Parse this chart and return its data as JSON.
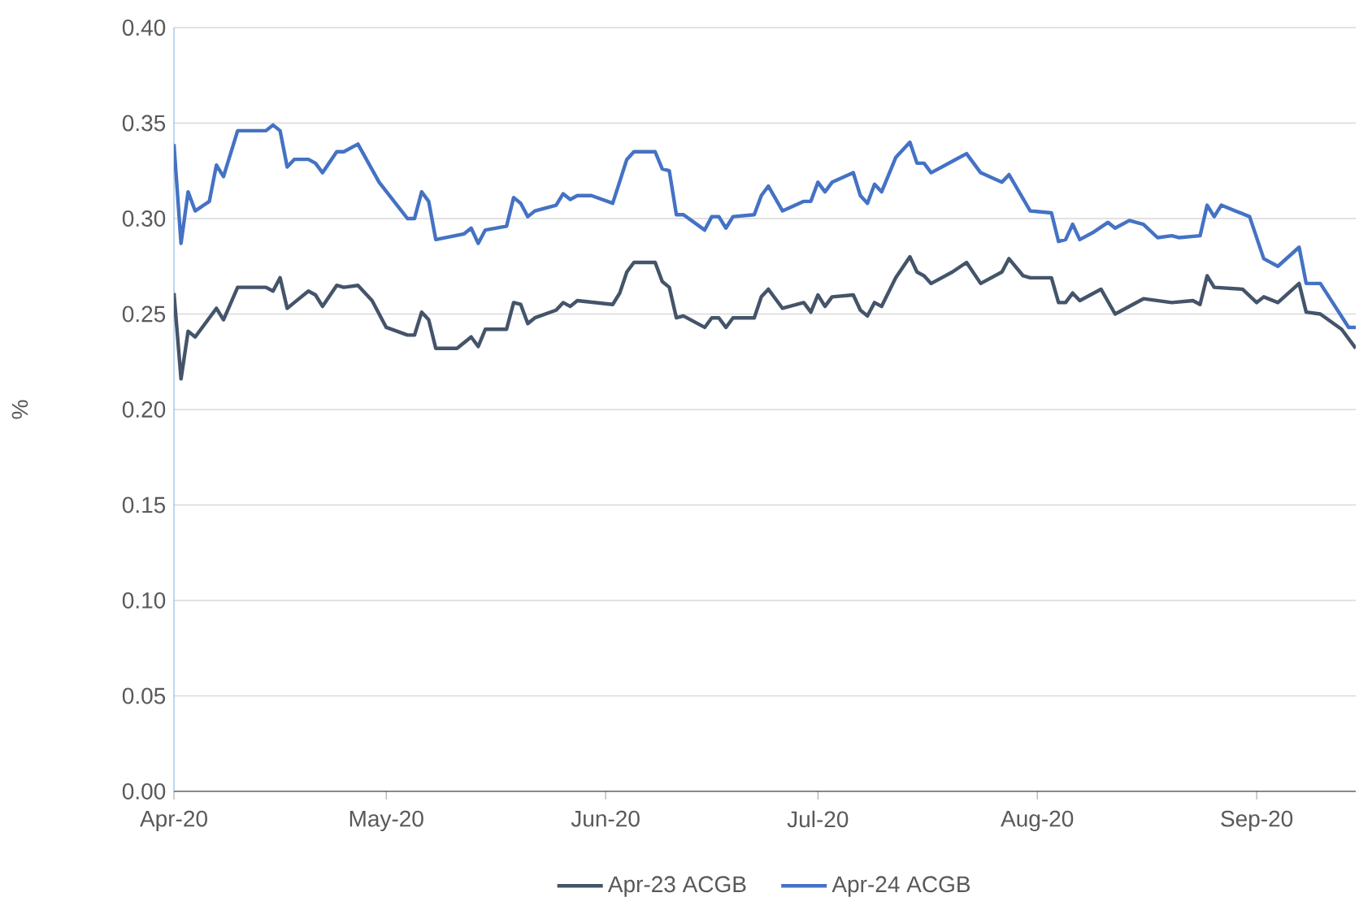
{
  "chart_data": {
    "type": "line",
    "ylabel": "%",
    "xlim": [
      "2020-04-01",
      "2020-09-15"
    ],
    "xticks": [
      {
        "value": "2020-04-01",
        "label": "Apr-20"
      },
      {
        "value": "2020-05-01",
        "label": "May-20"
      },
      {
        "value": "2020-06-01",
        "label": "Jun-20"
      },
      {
        "value": "2020-07-01",
        "label": "Jul-20"
      },
      {
        "value": "2020-08-01",
        "label": "Aug-20"
      },
      {
        "value": "2020-09-01",
        "label": "Sep-20"
      }
    ],
    "ylim": [
      0,
      0.4
    ],
    "yticks": [
      {
        "value": 0,
        "label": "0.00"
      },
      {
        "value": 0.05,
        "label": "0.05"
      },
      {
        "value": 0.1,
        "label": "0.10"
      },
      {
        "value": 0.15,
        "label": "0.15"
      },
      {
        "value": 0.2,
        "label": "0.20"
      },
      {
        "value": 0.25,
        "label": "0.25"
      },
      {
        "value": 0.3,
        "label": "0.30"
      },
      {
        "value": 0.35,
        "label": "0.35"
      },
      {
        "value": 0.4,
        "label": "0.40"
      }
    ],
    "grid": "y",
    "legend": "bottom",
    "line_style": "solid",
    "series": [
      {
        "name": "Apr-23 ACGB",
        "color": "#44546a",
        "x": [
          "2020-04-01",
          "2020-04-02",
          "2020-04-03",
          "2020-04-04",
          "2020-04-06",
          "2020-04-07",
          "2020-04-08",
          "2020-04-10",
          "2020-04-14",
          "2020-04-15",
          "2020-04-16",
          "2020-04-17",
          "2020-04-18",
          "2020-04-20",
          "2020-04-21",
          "2020-04-22",
          "2020-04-24",
          "2020-04-25",
          "2020-04-27",
          "2020-04-29",
          "2020-05-01",
          "2020-05-04",
          "2020-05-05",
          "2020-05-06",
          "2020-05-07",
          "2020-05-08",
          "2020-05-11",
          "2020-05-13",
          "2020-05-14",
          "2020-05-15",
          "2020-05-18",
          "2020-05-19",
          "2020-05-20",
          "2020-05-21",
          "2020-05-22",
          "2020-05-25",
          "2020-05-26",
          "2020-05-27",
          "2020-05-28",
          "2020-06-02",
          "2020-06-03",
          "2020-06-04",
          "2020-06-05",
          "2020-06-08",
          "2020-06-09",
          "2020-06-10",
          "2020-06-11",
          "2020-06-12",
          "2020-06-15",
          "2020-06-16",
          "2020-06-17",
          "2020-06-18",
          "2020-06-19",
          "2020-06-22",
          "2020-06-23",
          "2020-06-24",
          "2020-06-26",
          "2020-06-29",
          "2020-06-30",
          "2020-07-01",
          "2020-07-02",
          "2020-07-03",
          "2020-07-06",
          "2020-07-07",
          "2020-07-08",
          "2020-07-09",
          "2020-07-10",
          "2020-07-12",
          "2020-07-14",
          "2020-07-15",
          "2020-07-16",
          "2020-07-17",
          "2020-07-20",
          "2020-07-22",
          "2020-07-24",
          "2020-07-27",
          "2020-07-28",
          "2020-07-30",
          "2020-07-31",
          "2020-08-03",
          "2020-08-04",
          "2020-08-05",
          "2020-08-06",
          "2020-08-07",
          "2020-08-10",
          "2020-08-12",
          "2020-08-14",
          "2020-08-16",
          "2020-08-20",
          "2020-08-23",
          "2020-08-24",
          "2020-08-25",
          "2020-08-26",
          "2020-08-30",
          "2020-09-01",
          "2020-09-02",
          "2020-09-04",
          "2020-09-07",
          "2020-09-08",
          "2020-09-10",
          "2020-09-13",
          "2020-09-15"
        ],
        "values": [
          0.261,
          0.216,
          0.241,
          0.238,
          0.248,
          0.253,
          0.247,
          0.264,
          0.264,
          0.262,
          0.269,
          0.253,
          0.256,
          0.262,
          0.26,
          0.254,
          0.265,
          0.264,
          0.265,
          0.257,
          0.243,
          0.239,
          0.239,
          0.251,
          0.247,
          0.232,
          0.232,
          0.238,
          0.233,
          0.242,
          0.242,
          0.256,
          0.255,
          0.245,
          0.248,
          0.252,
          0.256,
          0.254,
          0.257,
          0.255,
          0.261,
          0.272,
          0.277,
          0.277,
          0.267,
          0.264,
          0.248,
          0.249,
          0.243,
          0.248,
          0.248,
          0.243,
          0.248,
          0.248,
          0.259,
          0.263,
          0.253,
          0.256,
          0.251,
          0.26,
          0.254,
          0.259,
          0.26,
          0.252,
          0.249,
          0.256,
          0.254,
          0.269,
          0.28,
          0.272,
          0.27,
          0.266,
          0.272,
          0.277,
          0.266,
          0.272,
          0.279,
          0.27,
          0.269,
          0.269,
          0.256,
          0.256,
          0.261,
          0.257,
          0.263,
          0.25,
          0.254,
          0.258,
          0.256,
          0.257,
          0.255,
          0.27,
          0.264,
          0.263,
          0.256,
          0.259,
          0.256,
          0.266,
          0.251,
          0.25,
          0.242,
          0.232
        ]
      },
      {
        "name": "Apr-24 ACGB",
        "color": "#4472c4",
        "x": [
          "2020-04-01",
          "2020-04-02",
          "2020-04-03",
          "2020-04-04",
          "2020-04-06",
          "2020-04-07",
          "2020-04-08",
          "2020-04-10",
          "2020-04-14",
          "2020-04-15",
          "2020-04-16",
          "2020-04-17",
          "2020-04-18",
          "2020-04-20",
          "2020-04-21",
          "2020-04-22",
          "2020-04-24",
          "2020-04-25",
          "2020-04-27",
          "2020-04-30",
          "2020-05-04",
          "2020-05-05",
          "2020-05-06",
          "2020-05-07",
          "2020-05-08",
          "2020-05-12",
          "2020-05-13",
          "2020-05-14",
          "2020-05-15",
          "2020-05-18",
          "2020-05-19",
          "2020-05-20",
          "2020-05-21",
          "2020-05-22",
          "2020-05-25",
          "2020-05-26",
          "2020-05-27",
          "2020-05-28",
          "2020-05-30",
          "2020-06-02",
          "2020-06-04",
          "2020-06-05",
          "2020-06-08",
          "2020-06-09",
          "2020-06-10",
          "2020-06-11",
          "2020-06-12",
          "2020-06-15",
          "2020-06-16",
          "2020-06-17",
          "2020-06-18",
          "2020-06-19",
          "2020-06-22",
          "2020-06-23",
          "2020-06-24",
          "2020-06-26",
          "2020-06-29",
          "2020-06-30",
          "2020-07-01",
          "2020-07-02",
          "2020-07-03",
          "2020-07-06",
          "2020-07-07",
          "2020-07-08",
          "2020-07-09",
          "2020-07-10",
          "2020-07-12",
          "2020-07-14",
          "2020-07-15",
          "2020-07-16",
          "2020-07-17",
          "2020-07-20",
          "2020-07-22",
          "2020-07-24",
          "2020-07-27",
          "2020-07-28",
          "2020-07-31",
          "2020-08-03",
          "2020-08-04",
          "2020-08-05",
          "2020-08-06",
          "2020-08-07",
          "2020-08-09",
          "2020-08-11",
          "2020-08-12",
          "2020-08-14",
          "2020-08-16",
          "2020-08-18",
          "2020-08-20",
          "2020-08-21",
          "2020-08-24",
          "2020-08-25",
          "2020-08-26",
          "2020-08-27",
          "2020-08-31",
          "2020-09-02",
          "2020-09-04",
          "2020-09-07",
          "2020-09-08",
          "2020-09-10",
          "2020-09-14",
          "2020-09-15"
        ],
        "values": [
          0.339,
          0.287,
          0.314,
          0.304,
          0.309,
          0.328,
          0.322,
          0.346,
          0.346,
          0.349,
          0.346,
          0.327,
          0.331,
          0.331,
          0.329,
          0.324,
          0.335,
          0.335,
          0.339,
          0.319,
          0.3,
          0.3,
          0.314,
          0.309,
          0.289,
          0.292,
          0.295,
          0.287,
          0.294,
          0.296,
          0.311,
          0.308,
          0.301,
          0.304,
          0.307,
          0.313,
          0.31,
          0.312,
          0.312,
          0.308,
          0.331,
          0.335,
          0.335,
          0.326,
          0.325,
          0.302,
          0.302,
          0.294,
          0.301,
          0.301,
          0.295,
          0.301,
          0.302,
          0.312,
          0.317,
          0.304,
          0.309,
          0.309,
          0.319,
          0.314,
          0.319,
          0.324,
          0.312,
          0.308,
          0.318,
          0.314,
          0.332,
          0.34,
          0.329,
          0.329,
          0.324,
          0.33,
          0.334,
          0.324,
          0.319,
          0.323,
          0.304,
          0.303,
          0.288,
          0.289,
          0.297,
          0.289,
          0.293,
          0.298,
          0.295,
          0.299,
          0.297,
          0.29,
          0.291,
          0.29,
          0.291,
          0.307,
          0.301,
          0.307,
          0.301,
          0.279,
          0.275,
          0.285,
          0.266,
          0.266,
          0.243,
          0.243
        ]
      }
    ]
  }
}
